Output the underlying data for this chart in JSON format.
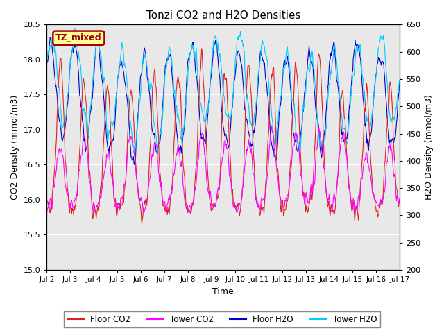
{
  "title": "Tonzi CO2 and H2O Densities",
  "xlabel": "Time",
  "ylabel_left": "CO2 Density (mmol/m3)",
  "ylabel_right": "H2O Density (mmol/m3)",
  "ylim_left": [
    15.0,
    18.5
  ],
  "ylim_right": [
    200,
    650
  ],
  "xlim": [
    0,
    360
  ],
  "xtick_positions": [
    0,
    24,
    48,
    72,
    96,
    120,
    144,
    168,
    192,
    216,
    240,
    264,
    288,
    312,
    336,
    360
  ],
  "xtick_labels": [
    "Jul 2",
    "Jul 3",
    "Jul 4",
    "Jul 5",
    "Jul 6",
    "Jul 7",
    "Jul 8",
    "Jul 9",
    "Jul 10",
    "Jul 11",
    "Jul 12",
    "Jul 13",
    "Jul 14",
    "Jul 15",
    "Jul 16",
    "Jul 17"
  ],
  "yticks_left": [
    15.0,
    15.5,
    16.0,
    16.5,
    17.0,
    17.5,
    18.0,
    18.5
  ],
  "yticks_right": [
    200,
    250,
    300,
    350,
    400,
    450,
    500,
    550,
    600,
    650
  ],
  "annotation_text": "TZ_mixed",
  "annotation_bg": "#FFFF99",
  "annotation_border": "#AA0000",
  "floor_co2_color": "#DD2222",
  "tower_co2_color": "#FF00FF",
  "floor_h2o_color": "#0000CC",
  "tower_h2o_color": "#00CCFF",
  "bg_color": "#E8E8E8",
  "fig_bg": "#FFFFFF",
  "grid_color": "#FFFFFF",
  "legend_labels": [
    "Floor CO2",
    "Tower CO2",
    "Floor H2O",
    "Tower H2O"
  ],
  "n_points": 721
}
